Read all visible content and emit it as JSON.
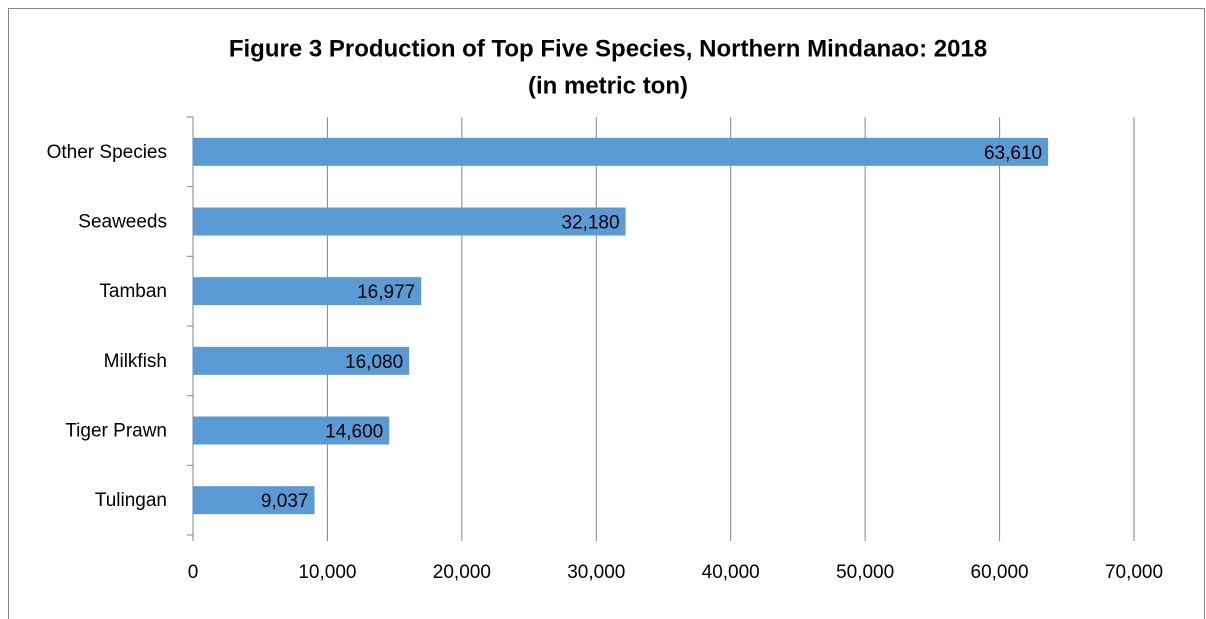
{
  "chart_data": {
    "type": "hbar",
    "title": "Figure 3 Production of Top Five Species, Northern Mindanao: 2018",
    "subtitle": "(in metric ton)",
    "categories": [
      "Other Species",
      "Seaweeds",
      "Tamban",
      "Milkfish",
      "Tiger Prawn",
      "Tulingan"
    ],
    "values": [
      63610,
      32180,
      16977,
      16080,
      14600,
      9037
    ],
    "value_labels": [
      "63,610",
      "32,180",
      "16,977",
      "16,080",
      "14,600",
      "9,037"
    ],
    "color": "#5b9bd5",
    "xlim": [
      0,
      70000
    ],
    "xticks": [
      0,
      {
        "value": 10000,
        "label": "10,000"
      },
      {
        "value": 20000,
        "label": "20,000"
      },
      {
        "value": 30000,
        "label": "30,000"
      },
      {
        "value": 40000,
        "label": "40,000"
      },
      {
        "value": 50000,
        "label": "50,000"
      },
      {
        "value": 60000,
        "label": "60,000"
      },
      {
        "value": 70000,
        "label": "70,000"
      }
    ],
    "grid": true
  }
}
